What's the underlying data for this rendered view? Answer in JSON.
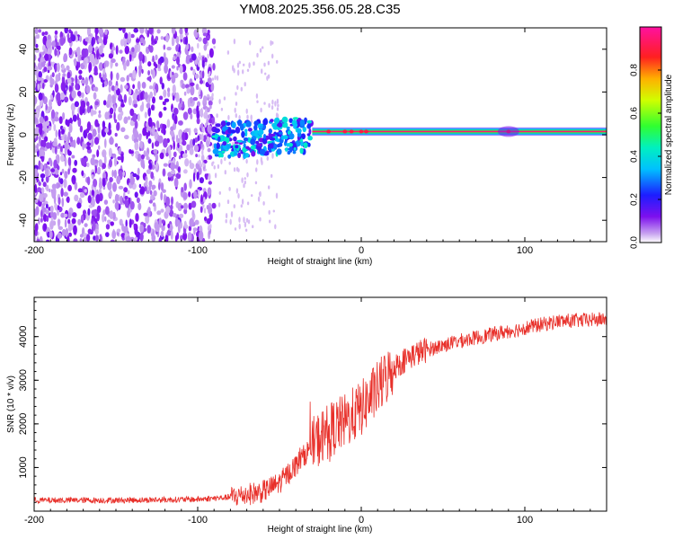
{
  "page_title": "YM08.2025.356.05.28.C35",
  "colors": {
    "snr_line": "#e8302a",
    "axis": "#000000",
    "background": "#ffffff"
  },
  "chart_data": [
    {
      "type": "heatmap",
      "title": "YM08.2025.356.05.28.C35",
      "xlabel": "Height of straight line (km)",
      "ylabel": "Frequency (Hz)",
      "xlim": [
        -200,
        150
      ],
      "ylim": [
        -50,
        50
      ],
      "xticks": [
        -200,
        -100,
        0,
        100
      ],
      "xtick_labels": [
        "-200",
        "-100",
        "0",
        "100"
      ],
      "yticks": [
        -40,
        -20,
        0,
        20,
        40
      ],
      "ytick_labels": [
        "-40",
        "-20",
        "0",
        "20",
        "40"
      ],
      "colorbar": {
        "label": "Normalized spectral amplitude",
        "range": [
          0,
          1
        ],
        "ticks": [
          0.0,
          0.2,
          0.4,
          0.6,
          0.8
        ],
        "tick_labels": [
          "0.0",
          "0.2",
          "0.4",
          "0.6",
          "0.8"
        ]
      },
      "regions": [
        {
          "name": "broadband noise",
          "x_range": [
            -200,
            -90
          ],
          "freq_range": [
            -50,
            50
          ],
          "amplitude": 0.05
        },
        {
          "name": "transition",
          "x_range": [
            -90,
            -30
          ],
          "freq_range": [
            -12,
            5
          ],
          "amplitude": 0.25
        },
        {
          "name": "carrier",
          "x_range": [
            -30,
            150
          ],
          "freq_center": 1.5,
          "freq_halfwidth": 2,
          "amplitude": 0.95
        }
      ]
    },
    {
      "type": "line",
      "xlabel": "Height of straight line (km)",
      "ylabel": "SNR (10 * v/v)",
      "xlim": [
        -200,
        150
      ],
      "ylim": [
        0,
        4900
      ],
      "xticks": [
        -200,
        -100,
        0,
        100
      ],
      "xtick_labels": [
        "-200",
        "-100",
        "0",
        "100"
      ],
      "yticks": [
        1000,
        2000,
        3000,
        4000
      ],
      "ytick_labels": [
        "1000",
        "2000",
        "3000",
        "4000"
      ],
      "series": [
        {
          "name": "SNR",
          "x": [
            -200,
            -150,
            -100,
            -80,
            -60,
            -50,
            -40,
            -30,
            -20,
            -10,
            0,
            10,
            20,
            30,
            40,
            60,
            80,
            100,
            120,
            150
          ],
          "values": [
            250,
            250,
            270,
            320,
            450,
            650,
            1050,
            1500,
            1850,
            2050,
            2350,
            2800,
            3300,
            3550,
            3700,
            3900,
            4050,
            4200,
            4350,
            4400
          ]
        }
      ]
    }
  ]
}
